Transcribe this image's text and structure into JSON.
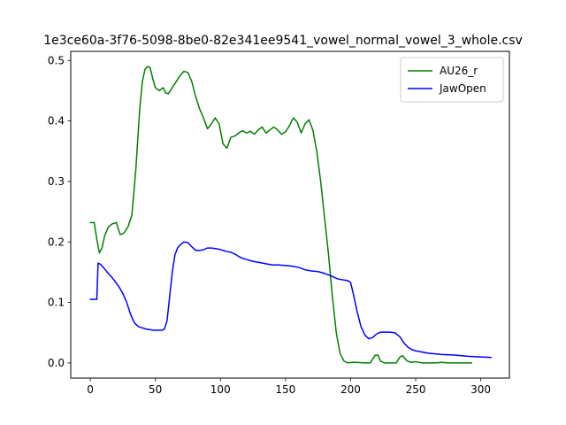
{
  "chart_data": {
    "type": "line",
    "title": "1e3ce60a-3f76-5098-8be0-82e341ee9541_vowel_normal_vowel_3_whole.csv",
    "xlabel": "",
    "ylabel": "",
    "xlim": [
      -15,
      322
    ],
    "ylim": [
      -0.025,
      0.515
    ],
    "xticks": [
      0,
      50,
      100,
      150,
      200,
      250,
      300
    ],
    "yticks": [
      0.0,
      0.1,
      0.2,
      0.3,
      0.4,
      0.5
    ],
    "ytick_labels": [
      "0.0",
      "0.1",
      "0.2",
      "0.3",
      "0.4",
      "0.5"
    ],
    "grid": false,
    "legend_position": "top-right",
    "series": [
      {
        "name": "AU26_r",
        "color": "#008000",
        "x": [
          0,
          3,
          5,
          7,
          9,
          11,
          14,
          17,
          20,
          23,
          26,
          29,
          32,
          35,
          38,
          40,
          42,
          44,
          46,
          48,
          50,
          53,
          56,
          58,
          60,
          63,
          66,
          69,
          72,
          75,
          78,
          81,
          84,
          87,
          90,
          93,
          96,
          99,
          102,
          105,
          108,
          111,
          114,
          117,
          120,
          123,
          126,
          129,
          132,
          135,
          138,
          141,
          144,
          147,
          150,
          153,
          156,
          159,
          162,
          165,
          168,
          171,
          174,
          177,
          180,
          183,
          186,
          189,
          192,
          195,
          198,
          201,
          205,
          210,
          215,
          219,
          221,
          223,
          226,
          230,
          235,
          238,
          240,
          243,
          246,
          250,
          255,
          260,
          265,
          270,
          275,
          280,
          285,
          290,
          293
        ],
        "y": [
          0.232,
          0.232,
          0.205,
          0.182,
          0.19,
          0.21,
          0.225,
          0.23,
          0.232,
          0.212,
          0.215,
          0.225,
          0.245,
          0.32,
          0.42,
          0.465,
          0.485,
          0.49,
          0.488,
          0.47,
          0.455,
          0.45,
          0.455,
          0.446,
          0.445,
          0.455,
          0.465,
          0.475,
          0.482,
          0.48,
          0.465,
          0.44,
          0.42,
          0.405,
          0.387,
          0.395,
          0.405,
          0.395,
          0.362,
          0.355,
          0.373,
          0.375,
          0.38,
          0.384,
          0.38,
          0.383,
          0.378,
          0.385,
          0.39,
          0.38,
          0.385,
          0.39,
          0.385,
          0.378,
          0.382,
          0.392,
          0.405,
          0.398,
          0.38,
          0.395,
          0.402,
          0.385,
          0.35,
          0.3,
          0.24,
          0.18,
          0.11,
          0.05,
          0.015,
          0.003,
          0.0,
          0.001,
          0.001,
          0.0,
          0.0,
          0.013,
          0.013,
          0.003,
          0.0,
          0.0,
          0.0,
          0.01,
          0.012,
          0.004,
          0.001,
          0.002,
          0.0,
          0.0,
          0.0,
          0.001,
          0.0,
          0.0,
          0.0,
          0.0,
          0.0
        ]
      },
      {
        "name": "JawOpen",
        "color": "#0000ff",
        "x": [
          0,
          4,
          5,
          6,
          8,
          10,
          13,
          16,
          19,
          22,
          25,
          28,
          31,
          34,
          37,
          40,
          43,
          46,
          49,
          52,
          55,
          57,
          59,
          61,
          63,
          65,
          67,
          69,
          72,
          75,
          78,
          81,
          84,
          87,
          90,
          93,
          96,
          99,
          102,
          105,
          108,
          111,
          114,
          117,
          120,
          125,
          130,
          135,
          140,
          145,
          150,
          155,
          160,
          165,
          170,
          175,
          180,
          185,
          190,
          195,
          198,
          200,
          202,
          205,
          208,
          211,
          214,
          217,
          220,
          223,
          226,
          230,
          234,
          238,
          241,
          244,
          247,
          250,
          255,
          260,
          265,
          270,
          280,
          290,
          300,
          308
        ],
        "y": [
          0.105,
          0.105,
          0.105,
          0.165,
          0.163,
          0.158,
          0.15,
          0.143,
          0.135,
          0.126,
          0.115,
          0.1,
          0.08,
          0.066,
          0.06,
          0.058,
          0.056,
          0.055,
          0.054,
          0.054,
          0.054,
          0.056,
          0.07,
          0.11,
          0.15,
          0.178,
          0.19,
          0.195,
          0.2,
          0.199,
          0.192,
          0.186,
          0.186,
          0.187,
          0.19,
          0.19,
          0.189,
          0.188,
          0.186,
          0.184,
          0.183,
          0.18,
          0.176,
          0.173,
          0.171,
          0.168,
          0.166,
          0.164,
          0.162,
          0.162,
          0.161,
          0.16,
          0.158,
          0.154,
          0.152,
          0.151,
          0.148,
          0.144,
          0.139,
          0.137,
          0.136,
          0.133,
          0.115,
          0.085,
          0.06,
          0.046,
          0.04,
          0.042,
          0.048,
          0.051,
          0.051,
          0.051,
          0.05,
          0.043,
          0.033,
          0.026,
          0.022,
          0.02,
          0.018,
          0.016,
          0.015,
          0.014,
          0.013,
          0.011,
          0.01,
          0.009
        ]
      }
    ]
  }
}
